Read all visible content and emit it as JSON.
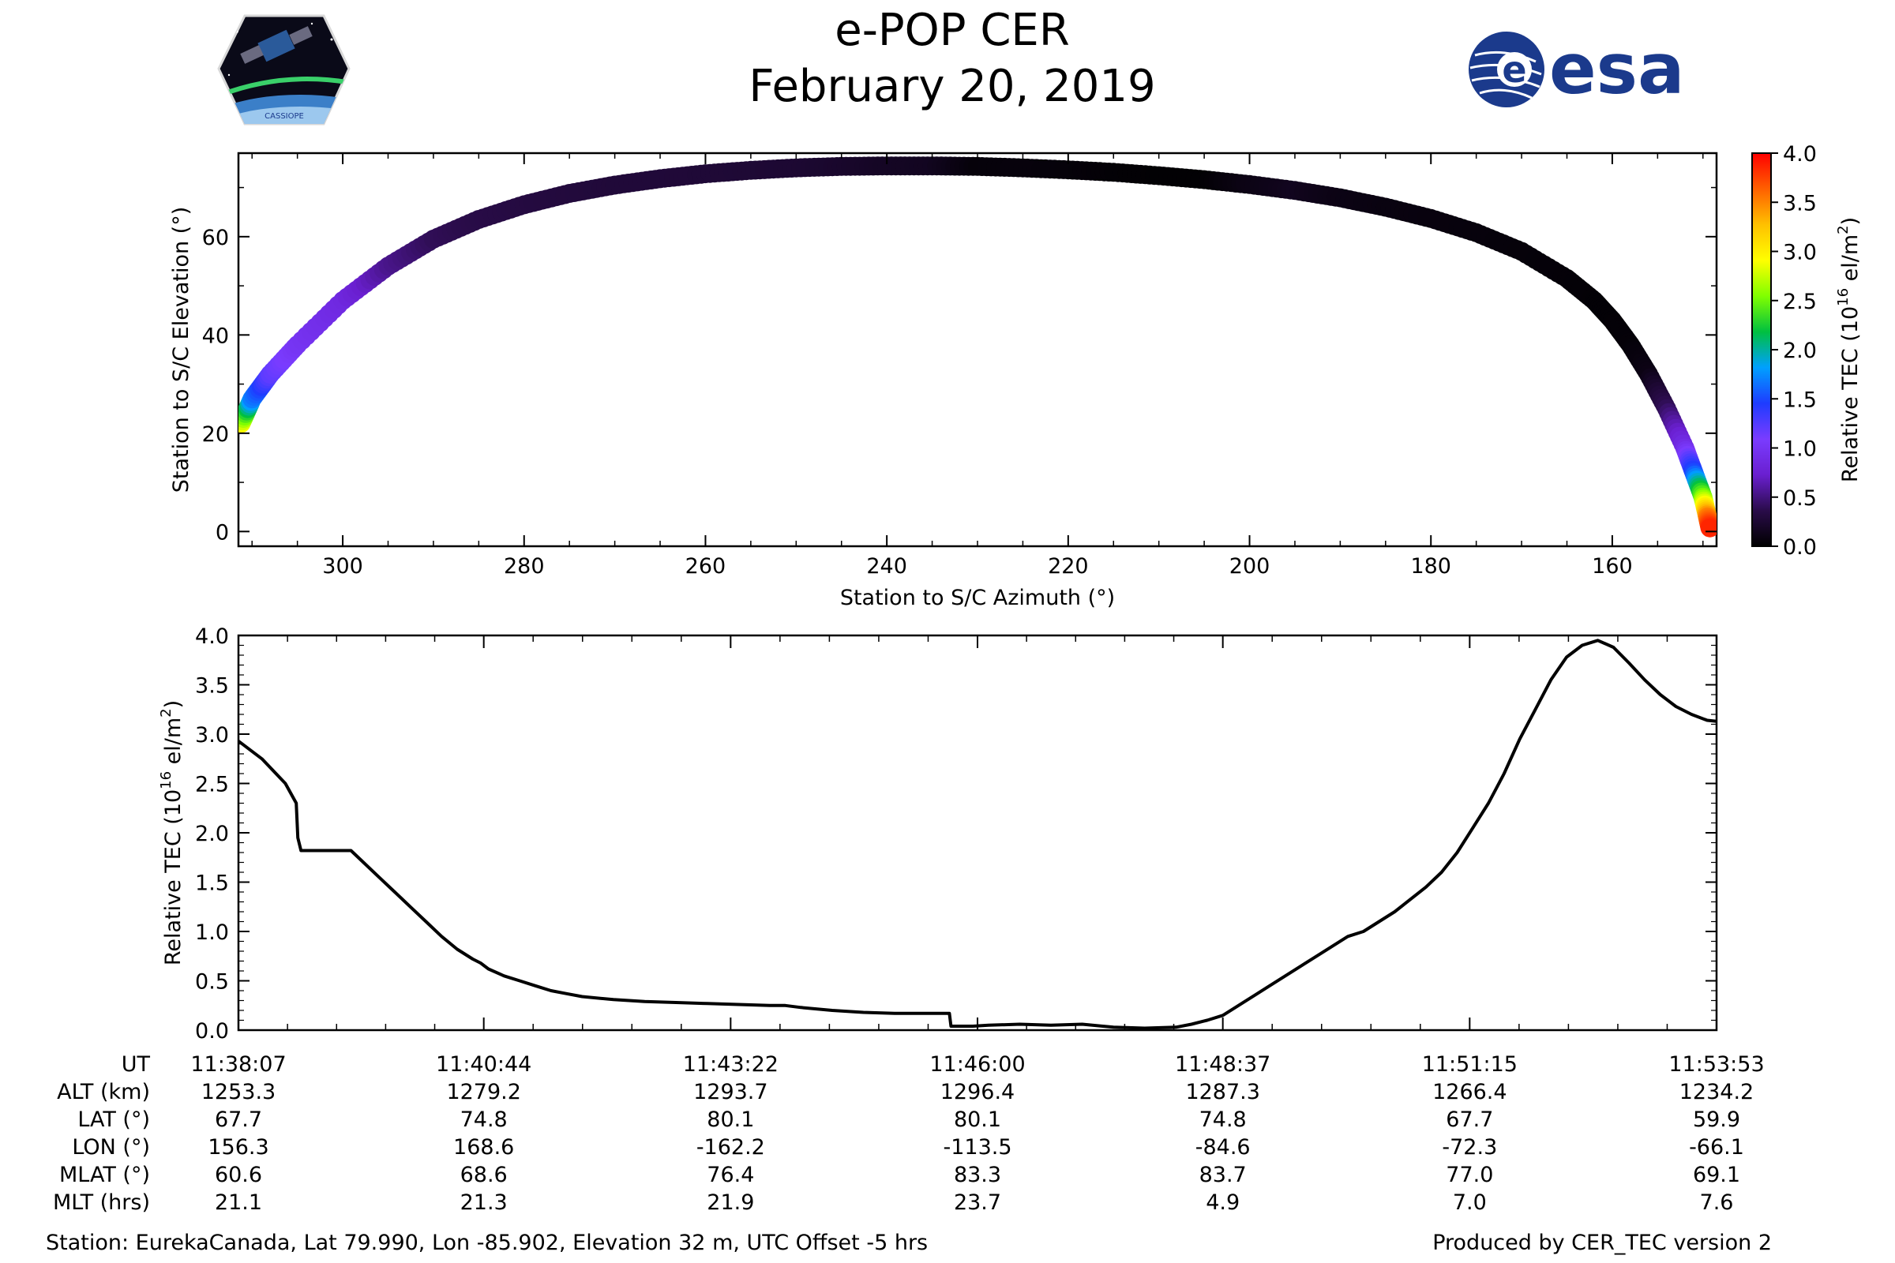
{
  "title": {
    "line1": "e-POP CER",
    "line2": "February 20, 2019"
  },
  "logos": {
    "left_caption": "CASSIOPE",
    "right_text": "esa"
  },
  "colors": {
    "line": "#000000",
    "esa_blue": "#1b3a8c",
    "cmap_stops": [
      "#000000",
      "#2a0c4a",
      "#6a1fd0",
      "#7a3cff",
      "#1e3cff",
      "#00a0ff",
      "#00c040",
      "#80ff00",
      "#ffff00",
      "#ffc000",
      "#ff6000",
      "#ff0000"
    ]
  },
  "chart_data": [
    {
      "type": "scatter",
      "name": "skyplot",
      "xlabel": "Station to S/C Azimuth (°)",
      "ylabel": "Station to S/C Elevation (°)",
      "xlim": [
        311.5,
        148.5
      ],
      "ylim": [
        -3,
        77
      ],
      "xticks": [
        300,
        280,
        260,
        240,
        220,
        200,
        180,
        160
      ],
      "xtick_labels": [
        "300",
        "280",
        "260",
        "240",
        "220",
        "200",
        "180",
        "160"
      ],
      "yticks": [
        0,
        20,
        40,
        60
      ],
      "ytick_labels": [
        "0",
        "20",
        "40",
        "60"
      ],
      "track": {
        "azimuth": [
          311.2,
          310,
          308,
          305,
          300,
          295,
          290,
          285,
          280,
          275,
          270,
          265,
          260,
          255,
          250,
          245,
          240,
          235,
          230,
          225,
          220,
          215,
          210,
          205,
          200,
          195,
          190,
          185,
          180,
          175,
          170,
          165,
          162,
          160,
          158,
          156,
          154,
          152,
          151,
          150,
          149.5,
          149.2
        ],
        "elevation": [
          22,
          27,
          32,
          38,
          47,
          54,
          59.5,
          63.5,
          66.5,
          68.8,
          70.5,
          71.8,
          72.8,
          73.5,
          74,
          74.3,
          74.4,
          74.4,
          74.3,
          74,
          73.6,
          73.1,
          72.4,
          71.6,
          70.6,
          69.4,
          67.9,
          66,
          63.7,
          60.8,
          57,
          51.5,
          47,
          43,
          38,
          32,
          25,
          17,
          12,
          7,
          3,
          0.5
        ],
        "tec": [
          2.9,
          1.7,
          1.2,
          1.0,
          0.85,
          0.55,
          0.4,
          0.35,
          0.32,
          0.3,
          0.28,
          0.28,
          0.27,
          0.26,
          0.25,
          0.22,
          0.18,
          0.16,
          0.05,
          0.06,
          0.05,
          0.03,
          0.02,
          0.02,
          0.1,
          0.15,
          0.1,
          0.08,
          0.07,
          0.06,
          0.05,
          0.04,
          0.03,
          0.03,
          0.04,
          0.1,
          0.4,
          0.9,
          1.5,
          2.5,
          3.5,
          3.9
        ]
      },
      "colorbar": {
        "label": "Relative TEC (10",
        "label_sup": "16",
        "label_tail": " el/m",
        "label_sup2": "2",
        "label_close": ")",
        "range": [
          0.0,
          4.0
        ],
        "ticks": [
          0.0,
          0.5,
          1.0,
          1.5,
          2.0,
          2.5,
          3.0,
          3.5,
          4.0
        ],
        "tick_labels": [
          "0.0",
          "0.5",
          "1.0",
          "1.5",
          "2.0",
          "2.5",
          "3.0",
          "3.5",
          "4.0"
        ]
      }
    },
    {
      "type": "line",
      "name": "tec-timeseries",
      "ylabel": "Relative TEC (10",
      "ylabel_sup": "16",
      "ylabel_tail": " el/m",
      "ylabel_sup2": "2",
      "ylabel_close": ")",
      "xlim": [
        0,
        946
      ],
      "ylim": [
        0.0,
        4.0
      ],
      "yticks": [
        0.0,
        0.5,
        1.0,
        1.5,
        2.0,
        2.5,
        3.0,
        3.5,
        4.0
      ],
      "ytick_labels": [
        "0.0",
        "0.5",
        "1.0",
        "1.5",
        "2.0",
        "2.5",
        "3.0",
        "3.5",
        "4.0"
      ],
      "xticks": [
        0,
        157,
        315,
        473,
        630,
        788,
        946
      ],
      "series": [
        {
          "name": "Relative TEC",
          "x": [
            0,
            15,
            30,
            37,
            38,
            40,
            50,
            60,
            72,
            80,
            90,
            100,
            110,
            120,
            130,
            140,
            150,
            155,
            160,
            170,
            180,
            190,
            200,
            210,
            220,
            240,
            260,
            280,
            300,
            320,
            340,
            350,
            360,
            380,
            400,
            420,
            440,
            455,
            456,
            458,
            470,
            480,
            500,
            520,
            540,
            560,
            580,
            600,
            610,
            620,
            630,
            640,
            650,
            660,
            670,
            680,
            690,
            700,
            710,
            720,
            730,
            740,
            760,
            770,
            780,
            790,
            800,
            810,
            820,
            830,
            840,
            850,
            860,
            870,
            880,
            890,
            900,
            910,
            920,
            930,
            940,
            946
          ],
          "y": [
            2.93,
            2.75,
            2.5,
            2.3,
            1.95,
            1.82,
            1.82,
            1.82,
            1.82,
            1.7,
            1.55,
            1.4,
            1.25,
            1.1,
            0.95,
            0.82,
            0.72,
            0.68,
            0.62,
            0.55,
            0.5,
            0.45,
            0.4,
            0.37,
            0.34,
            0.31,
            0.29,
            0.28,
            0.27,
            0.26,
            0.25,
            0.25,
            0.23,
            0.2,
            0.18,
            0.17,
            0.17,
            0.17,
            0.04,
            0.04,
            0.04,
            0.05,
            0.06,
            0.05,
            0.06,
            0.03,
            0.02,
            0.03,
            0.06,
            0.1,
            0.15,
            0.25,
            0.35,
            0.45,
            0.55,
            0.65,
            0.75,
            0.85,
            0.95,
            1.0,
            1.1,
            1.2,
            1.45,
            1.6,
            1.8,
            2.05,
            2.3,
            2.6,
            2.95,
            3.25,
            3.55,
            3.78,
            3.9,
            3.95,
            3.88,
            3.72,
            3.55,
            3.4,
            3.28,
            3.2,
            3.14,
            3.13
          ]
        }
      ]
    }
  ],
  "table": {
    "row_labels": [
      "UT",
      "ALT (km)",
      "LAT (°)",
      "LON (°)",
      "MLAT (°)",
      "MLT (hrs)"
    ],
    "columns": [
      [
        "11:38:07",
        "1253.3",
        "67.7",
        "156.3",
        "60.6",
        "21.1"
      ],
      [
        "11:40:44",
        "1279.2",
        "74.8",
        "168.6",
        "68.6",
        "21.3"
      ],
      [
        "11:43:22",
        "1293.7",
        "80.1",
        "-162.2",
        "76.4",
        "21.9"
      ],
      [
        "11:46:00",
        "1296.4",
        "80.1",
        "-113.5",
        "83.3",
        "23.7"
      ],
      [
        "11:48:37",
        "1287.3",
        "74.8",
        "-84.6",
        "83.7",
        "4.9"
      ],
      [
        "11:51:15",
        "1266.4",
        "67.7",
        "-72.3",
        "77.0",
        "7.0"
      ],
      [
        "11:53:53",
        "1234.2",
        "59.9",
        "-66.1",
        "69.1",
        "7.6"
      ]
    ]
  },
  "footer": {
    "station": "Station: EurekaCanada, Lat 79.990, Lon -85.902, Elevation 32 m, UTC Offset -5 hrs",
    "produced": "Produced by CER_TEC version 2"
  }
}
